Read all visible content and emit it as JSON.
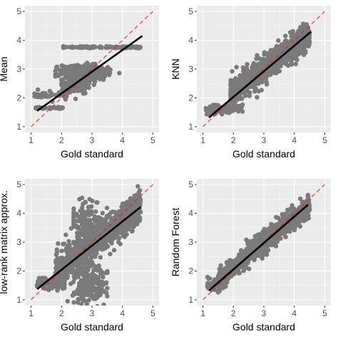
{
  "colors": {
    "panel_background": "#ebebeb",
    "grid": "#ffffff",
    "points": "#7a7a7a",
    "fit_line": "#000000",
    "identity_line": "#e8231c"
  },
  "chart_data": [
    {
      "type": "scatter",
      "xlabel": "Gold standard",
      "ylabel": "Mean",
      "xlim": [
        1,
        5
      ],
      "ylim": [
        1,
        5
      ],
      "xticks": [
        1,
        2,
        3,
        4,
        5
      ],
      "yticks": [
        1,
        2,
        3,
        4,
        5
      ],
      "grid": true,
      "clusters": [
        {
          "xmin": 2.05,
          "xmax": 4.6,
          "y": 3.76,
          "ysd": 0.015,
          "n": 110
        },
        {
          "xmin": 1.8,
          "xmax": 4.1,
          "ycenter": 2.9,
          "xcenter": 2.75,
          "xsd": 0.35,
          "ysd": 0.1,
          "n": 650
        },
        {
          "xmin": 1.1,
          "xmax": 2.2,
          "ycenter": 2.1,
          "xsd": 0.0,
          "ysd": 0.08,
          "n": 40
        },
        {
          "xmin": 1.1,
          "xmax": 2.05,
          "y": 1.65,
          "ysd": 0.015,
          "n": 45
        },
        {
          "xmin": 2.0,
          "xmax": 3.2,
          "ycenter": 2.45,
          "xcenter": 2.5,
          "xsd": 0.25,
          "ysd": 0.15,
          "n": 120
        }
      ],
      "fit_line": {
        "x": [
          1.2,
          4.65
        ],
        "y": [
          1.55,
          4.15
        ]
      },
      "identity_line": {
        "x": [
          1,
          5
        ],
        "y": [
          1,
          5
        ]
      }
    },
    {
      "type": "scatter",
      "xlabel": "Gold standard",
      "ylabel": "KNN",
      "xlim": [
        1,
        5
      ],
      "ylim": [
        1,
        5
      ],
      "xticks": [
        1,
        2,
        3,
        4,
        5
      ],
      "yticks": [
        1,
        2,
        3,
        4,
        5
      ],
      "grid": true,
      "clusters": [
        {
          "band": true,
          "xmin": 1.9,
          "xmax": 4.5,
          "slope": 0.78,
          "intercept": 0.68,
          "ysd": 0.22,
          "n": 900
        },
        {
          "xmin": 1.2,
          "xmax": 2.3,
          "ycenter": 1.62,
          "xcenter": 1.75,
          "xsd": 0.28,
          "ysd": 0.07,
          "n": 90
        },
        {
          "xmin": 1.1,
          "xmax": 1.6,
          "ycenter": 1.55,
          "xcenter": 1.3,
          "xsd": 0.12,
          "ysd": 0.08,
          "n": 20
        }
      ],
      "fit_line": {
        "x": [
          1.2,
          4.55
        ],
        "y": [
          1.32,
          4.3
        ]
      },
      "identity_line": {
        "x": [
          1,
          5
        ],
        "y": [
          1,
          5
        ]
      }
    },
    {
      "type": "scatter",
      "xlabel": "Gold standard",
      "ylabel": "low-rank matrix approx.",
      "xlim": [
        1,
        5
      ],
      "ylim": [
        1,
        5
      ],
      "xticks": [
        1,
        2,
        3,
        4,
        5
      ],
      "yticks": [
        1,
        2,
        3,
        4,
        5
      ],
      "grid": true,
      "clusters": [
        {
          "band": true,
          "xmin": 1.8,
          "xmax": 4.6,
          "slope": 0.8,
          "intercept": 0.55,
          "ysd": 0.3,
          "n": 900
        },
        {
          "xmin": 2.2,
          "xmax": 3.5,
          "ycenter": 1.55,
          "xcenter": 2.85,
          "xsd": 0.3,
          "ysd": 0.35,
          "n": 200
        },
        {
          "xmin": 2.4,
          "xmax": 3.4,
          "ycenter": 3.7,
          "xcenter": 2.75,
          "xsd": 0.25,
          "ysd": 0.45,
          "n": 130
        },
        {
          "xmin": 1.2,
          "xmax": 2.1,
          "ycenter": 1.6,
          "xcenter": 1.65,
          "xsd": 0.25,
          "ysd": 0.12,
          "n": 80
        }
      ],
      "fit_line": {
        "x": [
          1.2,
          4.6
        ],
        "y": [
          1.37,
          4.22
        ]
      },
      "identity_line": {
        "x": [
          1,
          5
        ],
        "y": [
          1,
          5
        ]
      }
    },
    {
      "type": "scatter",
      "xlabel": "Gold standard",
      "ylabel": "Random Forest",
      "xlim": [
        1,
        5
      ],
      "ylim": [
        1,
        5
      ],
      "xticks": [
        1,
        2,
        3,
        4,
        5
      ],
      "yticks": [
        1,
        2,
        3,
        4,
        5
      ],
      "grid": true,
      "clusters": [
        {
          "band": true,
          "xmin": 1.5,
          "xmax": 4.5,
          "slope": 0.86,
          "intercept": 0.4,
          "ysd": 0.18,
          "n": 900
        },
        {
          "xmin": 1.15,
          "xmax": 2.0,
          "ycenter": 1.55,
          "xcenter": 1.5,
          "xsd": 0.22,
          "ysd": 0.12,
          "n": 70
        }
      ],
      "fit_line": {
        "x": [
          1.2,
          4.45
        ],
        "y": [
          1.32,
          4.3
        ]
      },
      "identity_line": {
        "x": [
          1,
          5
        ],
        "y": [
          1,
          5
        ]
      }
    }
  ]
}
